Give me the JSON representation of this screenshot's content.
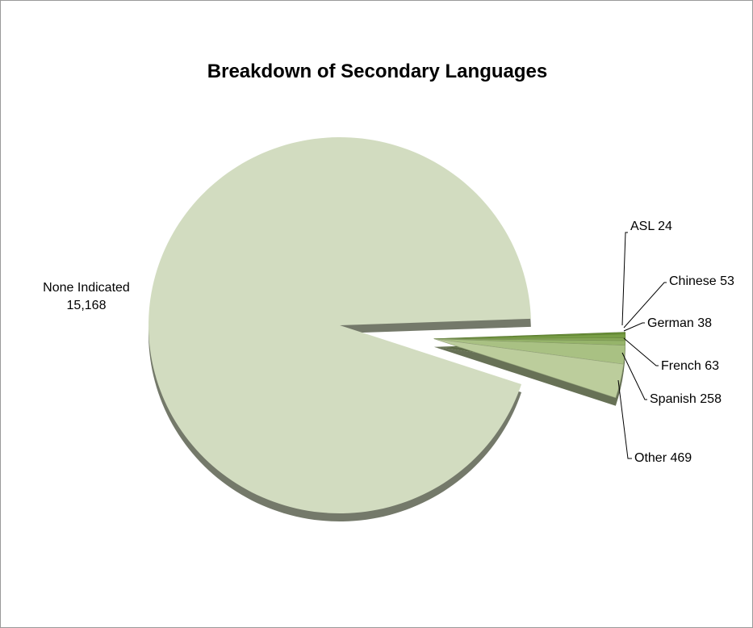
{
  "chart_data": {
    "type": "pie",
    "title": "Breakdown of Secondary Languages",
    "slices": [
      {
        "label": "None Indicated",
        "value": 15168,
        "value_text": "15,168",
        "color": "#d2dcc0"
      },
      {
        "label": "Other",
        "value": 469,
        "value_text": "469",
        "color": "#bccd9c"
      },
      {
        "label": "Spanish",
        "value": 258,
        "value_text": "258",
        "color": "#a9c183"
      },
      {
        "label": "French",
        "value": 63,
        "value_text": "63",
        "color": "#96b46a"
      },
      {
        "label": "German",
        "value": 38,
        "value_text": "38",
        "color": "#87a957"
      },
      {
        "label": "Chinese",
        "value": 53,
        "value_text": "53",
        "color": "#789e45"
      },
      {
        "label": "ASL",
        "value": 24,
        "value_text": "24",
        "color": "#6a9236"
      }
    ],
    "exploded": [
      "Other",
      "Spanish",
      "French",
      "German",
      "Chinese",
      "ASL"
    ],
    "legend": "none",
    "data_labels": "outside with leader lines"
  }
}
